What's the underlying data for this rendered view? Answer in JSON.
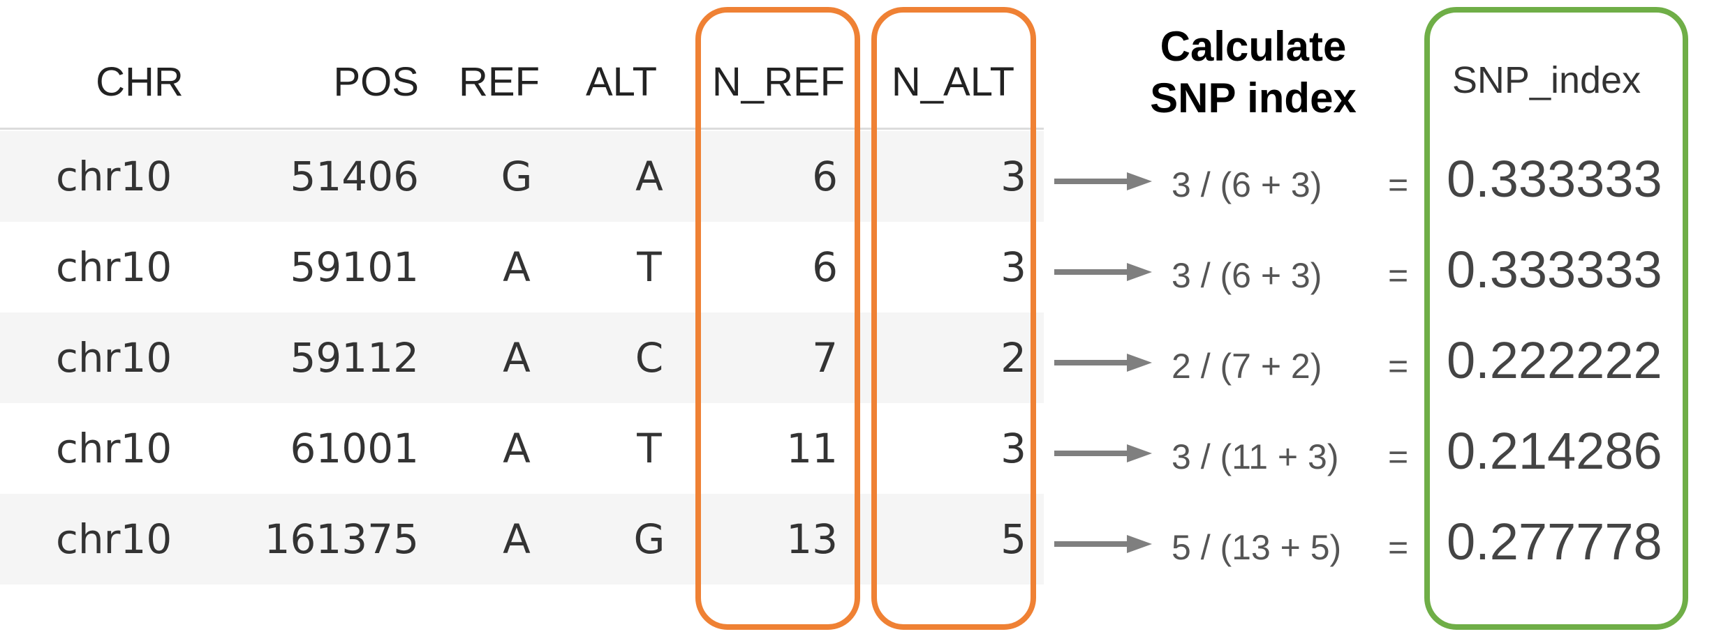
{
  "table": {
    "headers": {
      "chr": "CHR",
      "pos": "POS",
      "ref": "REF",
      "alt": "ALT",
      "n_ref": "N_REF",
      "n_alt": "N_ALT"
    },
    "rows": [
      {
        "chr": "chr10",
        "pos": "51406",
        "ref": "G",
        "alt": "A",
        "n_ref": "6",
        "n_alt": "3"
      },
      {
        "chr": "chr10",
        "pos": "59101",
        "ref": "A",
        "alt": "T",
        "n_ref": "6",
        "n_alt": "3"
      },
      {
        "chr": "chr10",
        "pos": "59112",
        "ref": "A",
        "alt": "C",
        "n_ref": "7",
        "n_alt": "2"
      },
      {
        "chr": "chr10",
        "pos": "61001",
        "ref": "A",
        "alt": "T",
        "n_ref": "11",
        "n_alt": "3"
      },
      {
        "chr": "chr10",
        "pos": "161375",
        "ref": "A",
        "alt": "G",
        "n_ref": "13",
        "n_alt": "5"
      }
    ]
  },
  "calc": {
    "title_line1": "Calculate",
    "title_line2": "SNP index",
    "formulas": [
      "3 / (6 + 3)",
      "3 / (6 + 3)",
      "2 / (7 + 2)",
      "3 / (11 + 3)",
      "5 / (13 + 5)"
    ],
    "equals": "="
  },
  "snp_index": {
    "header": "SNP_index",
    "values": [
      "0.333333",
      "0.333333",
      "0.222222",
      "0.214286",
      "0.277778"
    ]
  },
  "colors": {
    "highlight_box": "#ef8134",
    "result_box": "#6fae47",
    "arrow": "#7f7f7f",
    "row_stripe": "#f5f5f5"
  }
}
